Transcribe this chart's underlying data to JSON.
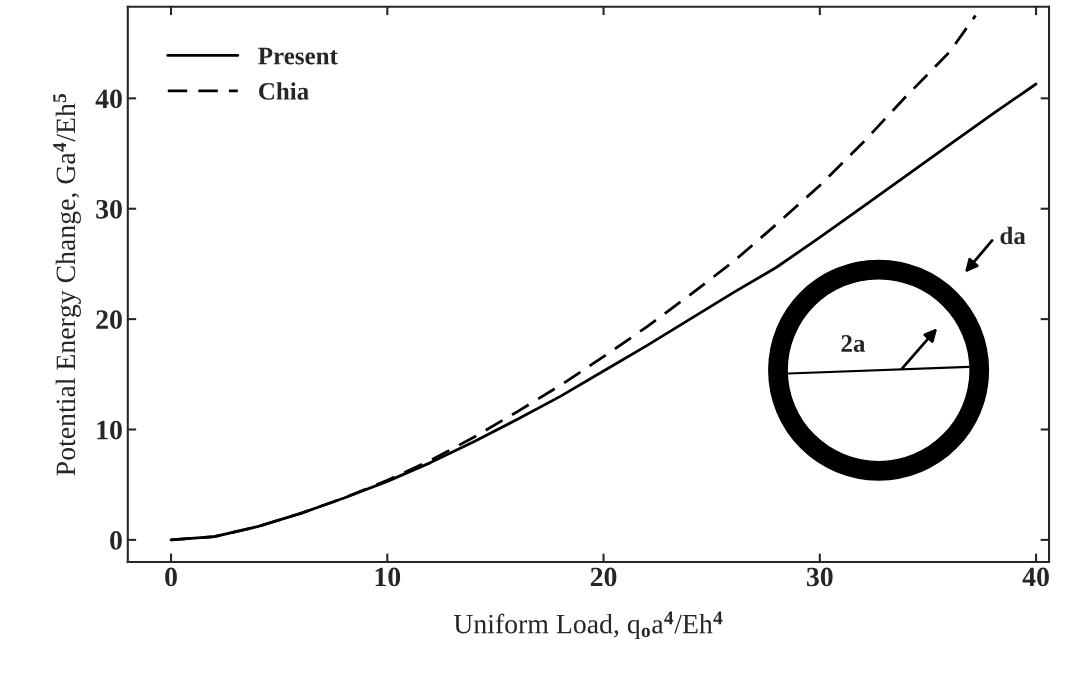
{
  "chart_data": {
    "type": "line",
    "xlabel": "Uniform Load, q$_{o}$a$^{4}$/Eh$^{4}$",
    "ylabel": "Potential Energy Change, Ga$^{4}$/Eh$^{5}$",
    "x": [
      0,
      2,
      4,
      6,
      8,
      10,
      12,
      14,
      16,
      18,
      20,
      22,
      24,
      26,
      28,
      30,
      32,
      34,
      36,
      38,
      40
    ],
    "series": [
      {
        "name": "Present",
        "color": "#000000",
        "line_style": "solid",
        "values": [
          0,
          0.3,
          1.2,
          2.4,
          3.8,
          5.3,
          7.0,
          8.9,
          10.9,
          13.0,
          15.3,
          17.6,
          20.0,
          22.4,
          24.7,
          27.4,
          30.2,
          33.0,
          35.8,
          38.6,
          41.3
        ]
      },
      {
        "name": "Chia",
        "color": "#000000",
        "line_style": "dashed",
        "x": [
          0,
          2,
          4,
          6,
          8,
          10,
          12,
          14,
          16,
          18,
          20,
          22,
          24,
          26,
          28,
          30,
          32,
          34,
          36,
          37.2
        ],
        "values": [
          0,
          0.3,
          1.2,
          2.4,
          3.8,
          5.4,
          7.2,
          9.3,
          11.6,
          14.0,
          16.6,
          19.3,
          22.2,
          25.2,
          28.6,
          32.1,
          36.0,
          40.2,
          44.2,
          47.5
        ]
      }
    ],
    "xlim": [
      -2,
      40.6
    ],
    "ylim": [
      -2,
      48.3
    ],
    "xticks": [
      0,
      10,
      20,
      30,
      40
    ],
    "yticks": [
      0,
      10,
      20,
      30,
      40
    ],
    "legend": "top left",
    "grid": false,
    "annotations": [
      "2a",
      "da"
    ]
  }
}
